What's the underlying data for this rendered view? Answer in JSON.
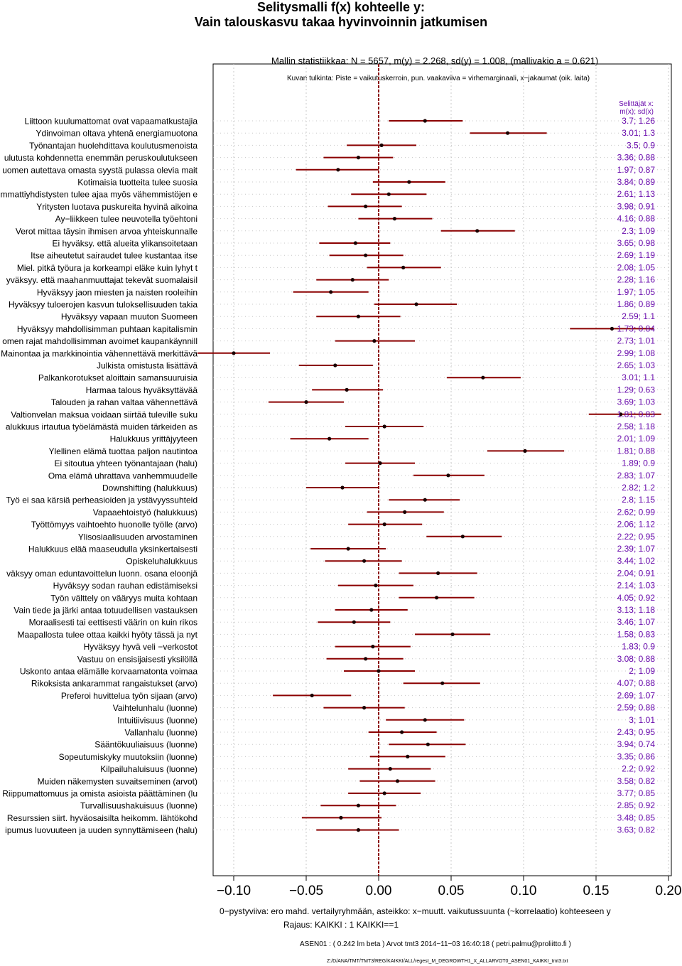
{
  "title": {
    "line1": "Selitysmalli f(x) kohteelle y:",
    "line2": "Vain talouskasvu takaa hyvinvoinnin jatkumisen"
  },
  "stats_line": "Mallin statistiikkaa: N = 5657, m(y) = 2.268, sd(y) = 1.008, (mallivakio a = 0.621)",
  "interpretation_line": "Kuvan tulkinta: Piste = vaikutuskerroin, pun. vaakaviiva = virhemarginaali, x−jakaumat (oik. laita)",
  "right_header": {
    "line1": "Selittäjät x:",
    "line2": "m(x); sd(x)"
  },
  "x_caption": "0−pystyviiva: ero mahd. vertailyryhmään, asteikko: x−muutt. vaikutussuunta (~korrelaatio) kohteeseen y",
  "rajaus": "Rajaus: KAIKKI : 1  KAIKKI==1",
  "asen_line": "ASEN01 : ( 0.242 lm beta )    Arvot tmt3 2014−11−03 16:40:18 ( petri.palmu@proliitto.fi )",
  "file_path": "Z:/D/ANA/TMT/TMT3/REG/KAIKKI/ALL/regest_M_DEGROWTH1_X_ALLARVOT0_ASEN01_KAIKKI_tmt3.txt",
  "colors": {
    "point": "#1a0000",
    "interval": "#8b0000",
    "zero_line": "#8b0000",
    "right_text": "#6a0dad",
    "grid": "#c8c8c8"
  },
  "chart_data": {
    "type": "forest",
    "xlim": [
      -0.11,
      0.2
    ],
    "x_ticks": [
      "−0.10",
      "−0.05",
      "0.00",
      "0.05",
      "0.10",
      "0.15",
      "0.20"
    ],
    "x_tick_values": [
      -0.1,
      -0.05,
      0.0,
      0.05,
      0.1,
      0.15,
      0.2
    ],
    "grid": true,
    "zero_line": 0,
    "rows": [
      {
        "label": "Liittoon kuulumattomat ovat vapaamatkustajia",
        "coef": 0.032,
        "lo": 0.007,
        "hi": 0.058,
        "mx_sd": "3.7; 1.26"
      },
      {
        "label": "Ydinvoiman oltava yhtenä energiamuotona",
        "coef": 0.089,
        "lo": 0.063,
        "hi": 0.116,
        "mx_sd": "3.01; 1.3"
      },
      {
        "label": "Työnantajan huolehdittava koulutusmenoista",
        "coef": 0.002,
        "lo": -0.022,
        "hi": 0.026,
        "mx_sd": "3.5; 0.9"
      },
      {
        "label": "ulutusta kohdennetta enemmän peruskoulutukseen",
        "coef": -0.014,
        "lo": -0.038,
        "hi": 0.01,
        "mx_sd": "3.36; 0.88"
      },
      {
        "label": "uomen autettava omasta syystä pulassa olevia mait",
        "coef": -0.028,
        "lo": -0.057,
        "hi": 0.0,
        "mx_sd": "1.97; 0.87"
      },
      {
        "label": "Kotimaisia tuotteita tulee suosia",
        "coef": 0.021,
        "lo": -0.004,
        "hi": 0.046,
        "mx_sd": "3.84; 0.89"
      },
      {
        "label": "mmattiyhdistysten tulee ajaa myös vähemmistöjen e",
        "coef": 0.007,
        "lo": -0.019,
        "hi": 0.033,
        "mx_sd": "2.61; 1.13"
      },
      {
        "label": "Yritysten luotava puskureita hyvinä aikoina",
        "coef": -0.009,
        "lo": -0.035,
        "hi": 0.016,
        "mx_sd": "3.98; 0.91"
      },
      {
        "label": "Ay−liikkeen tulee neuvotella työehtoni",
        "coef": 0.011,
        "lo": -0.014,
        "hi": 0.037,
        "mx_sd": "4.16; 0.88"
      },
      {
        "label": "Verot mittaa täysin ihmisen arvoa yhteiskunnalle",
        "coef": 0.068,
        "lo": 0.043,
        "hi": 0.094,
        "mx_sd": "2.3; 1.09"
      },
      {
        "label": "Ei hyväksy. että alueita ylikansoitetaan",
        "coef": -0.016,
        "lo": -0.041,
        "hi": 0.008,
        "mx_sd": "3.65; 0.98"
      },
      {
        "label": "Itse aiheutetut sairaudet tulee kustantaa itse",
        "coef": -0.009,
        "lo": -0.034,
        "hi": 0.017,
        "mx_sd": "2.69; 1.19"
      },
      {
        "label": "Miel. pitkä työura ja korkeampi eläke kuin lyhyt t",
        "coef": 0.017,
        "lo": -0.008,
        "hi": 0.043,
        "mx_sd": "2.08; 1.05"
      },
      {
        "label": "yväksyy. että maahanmuuttajat tekevät suomalaisil",
        "coef": -0.018,
        "lo": -0.043,
        "hi": 0.007,
        "mx_sd": "2.28; 1.16"
      },
      {
        "label": "Hyväksyy jaon miesten ja naisten rooleihin",
        "coef": -0.033,
        "lo": -0.059,
        "hi": -0.007,
        "mx_sd": "1.97; 1.05"
      },
      {
        "label": "Hyväksyy tuloerojen kasvun tuloksellisuuden takia",
        "coef": 0.026,
        "lo": -0.003,
        "hi": 0.054,
        "mx_sd": "1.86; 0.89"
      },
      {
        "label": "Hyväksyy vapaan muuton Suomeen",
        "coef": -0.014,
        "lo": -0.043,
        "hi": 0.015,
        "mx_sd": "2.59; 1.1"
      },
      {
        "label": "Hyväksyy mahdollisimman puhtaan kapitalismin",
        "coef": 0.161,
        "lo": 0.132,
        "hi": 0.19,
        "mx_sd": "1.73; 0.84"
      },
      {
        "label": "omen rajat mahdollisimman avoimet kaupankäynnill",
        "coef": -0.003,
        "lo": -0.03,
        "hi": 0.025,
        "mx_sd": "2.73; 1.01"
      },
      {
        "label": "Mainontaa ja markkinointia vähennettävä merkittävä",
        "coef": -0.1,
        "lo": -0.125,
        "hi": -0.075,
        "mx_sd": "2.99; 1.08"
      },
      {
        "label": "Julkista omistusta lisättävä",
        "coef": -0.03,
        "lo": -0.055,
        "hi": -0.004,
        "mx_sd": "2.65; 1.03"
      },
      {
        "label": "Palkankorotukset aloittain samansuuruisia",
        "coef": 0.072,
        "lo": 0.047,
        "hi": 0.098,
        "mx_sd": "3.01; 1.1"
      },
      {
        "label": "Harmaa talous hyväksyttävää",
        "coef": -0.022,
        "lo": -0.046,
        "hi": 0.003,
        "mx_sd": "1.29; 0.63"
      },
      {
        "label": "Talouden ja rahan valtaa vähennettävä",
        "coef": -0.05,
        "lo": -0.076,
        "hi": -0.024,
        "mx_sd": "3.69; 1.03"
      },
      {
        "label": "Valtionvelan maksua voidaan siirtää tuleville suku",
        "coef": 0.167,
        "lo": 0.145,
        "hi": 0.195,
        "mx_sd": "1.81; 0.83"
      },
      {
        "label": "alukkuus irtautua työelämästä muiden tärkeiden as",
        "coef": 0.004,
        "lo": -0.023,
        "hi": 0.031,
        "mx_sd": "2.58; 1.18"
      },
      {
        "label": "Halukkuus yrittäjyyteen",
        "coef": -0.034,
        "lo": -0.061,
        "hi": -0.007,
        "mx_sd": "2.01; 1.09"
      },
      {
        "label": "Ylellinen elämä tuottaa paljon nautintoa",
        "coef": 0.101,
        "lo": 0.075,
        "hi": 0.128,
        "mx_sd": "1.81; 0.88"
      },
      {
        "label": "Ei sitoutua yhteen työnantajaan (halu)",
        "coef": 0.001,
        "lo": -0.023,
        "hi": 0.025,
        "mx_sd": "1.89; 0.9"
      },
      {
        "label": "Oma elämä uhrattava vanhemmuudelle",
        "coef": 0.048,
        "lo": 0.024,
        "hi": 0.073,
        "mx_sd": "2.83; 1.07"
      },
      {
        "label": "Downshifting (halukkuus)",
        "coef": -0.025,
        "lo": -0.05,
        "hi": 0.0,
        "mx_sd": "2.82; 1.2"
      },
      {
        "label": "Työ ei saa kärsiä perheasioiden ja ystävyyssuhteid",
        "coef": 0.032,
        "lo": 0.007,
        "hi": 0.056,
        "mx_sd": "2.8; 1.15"
      },
      {
        "label": "Vapaaehtoistyö (halukkuus)",
        "coef": 0.018,
        "lo": -0.008,
        "hi": 0.045,
        "mx_sd": "2.62; 0.99"
      },
      {
        "label": "Työttömyys vaihtoehto huonolle työlle (arvo)",
        "coef": 0.004,
        "lo": -0.021,
        "hi": 0.03,
        "mx_sd": "2.06; 1.12"
      },
      {
        "label": "Ylisosiaalisuuden arvostaminen",
        "coef": 0.058,
        "lo": 0.033,
        "hi": 0.085,
        "mx_sd": "2.22; 0.95"
      },
      {
        "label": "Halukkuus elää maaseudulla yksinkertaisesti",
        "coef": -0.021,
        "lo": -0.047,
        "hi": 0.005,
        "mx_sd": "2.39; 1.07"
      },
      {
        "label": "Opiskeluhalukkuus",
        "coef": -0.01,
        "lo": -0.037,
        "hi": 0.016,
        "mx_sd": "3.44; 1.02"
      },
      {
        "label": "väksyy oman eduntavoittelun luonn. osana eloonjä",
        "coef": 0.041,
        "lo": 0.014,
        "hi": 0.068,
        "mx_sd": "2.04; 0.91"
      },
      {
        "label": "Hyväksyy sodan rauhan edistämiseksi",
        "coef": -0.002,
        "lo": -0.028,
        "hi": 0.024,
        "mx_sd": "2.14; 1.03"
      },
      {
        "label": "Työn välttely on vääryys muita kohtaan",
        "coef": 0.04,
        "lo": 0.014,
        "hi": 0.066,
        "mx_sd": "4.05; 0.92"
      },
      {
        "label": "Vain tiede ja järki antaa totuudellisen vastauksen",
        "coef": -0.005,
        "lo": -0.03,
        "hi": 0.02,
        "mx_sd": "3.13; 1.18"
      },
      {
        "label": "Moraalisesti tai eettisesti väärin on kuin rikos",
        "coef": -0.017,
        "lo": -0.042,
        "hi": 0.008,
        "mx_sd": "3.46; 1.07"
      },
      {
        "label": "Maapallosta tulee ottaa kaikki hyöty tässä ja nyt",
        "coef": 0.051,
        "lo": 0.025,
        "hi": 0.077,
        "mx_sd": "1.58; 0.83"
      },
      {
        "label": "Hyväksyy hyvä veli −verkostot",
        "coef": -0.004,
        "lo": -0.03,
        "hi": 0.022,
        "mx_sd": "1.83; 0.9"
      },
      {
        "label": "Vastuu on ensisijaisesti yksilöllä",
        "coef": -0.009,
        "lo": -0.036,
        "hi": 0.017,
        "mx_sd": "3.08; 0.88"
      },
      {
        "label": "Uskonto antaa elämälle korvaamatonta voimaa",
        "coef": 0.0,
        "lo": -0.024,
        "hi": 0.025,
        "mx_sd": "2; 1.09"
      },
      {
        "label": "Rikoksista ankarammat rangaistukset (arvo)",
        "coef": 0.044,
        "lo": 0.017,
        "hi": 0.07,
        "mx_sd": "4.07; 0.88"
      },
      {
        "label": "Preferoi huvittelua työn sijaan (arvo)",
        "coef": -0.046,
        "lo": -0.073,
        "hi": -0.019,
        "mx_sd": "2.69; 1.07"
      },
      {
        "label": "Vaihtelunhalu (luonne)",
        "coef": -0.01,
        "lo": -0.038,
        "hi": 0.018,
        "mx_sd": "2.59; 0.88"
      },
      {
        "label": "Intuitiivisuus (luonne)",
        "coef": 0.032,
        "lo": 0.005,
        "hi": 0.059,
        "mx_sd": "3; 1.01"
      },
      {
        "label": "Vallanhalu (luonne)",
        "coef": 0.016,
        "lo": -0.007,
        "hi": 0.04,
        "mx_sd": "2.43; 0.95"
      },
      {
        "label": "Sääntökuuliaisuus (luonne)",
        "coef": 0.034,
        "lo": 0.007,
        "hi": 0.06,
        "mx_sd": "3.94; 0.74"
      },
      {
        "label": "Sopeutumiskyky muutoksiin (luonne)",
        "coef": 0.02,
        "lo": -0.006,
        "hi": 0.046,
        "mx_sd": "3.35; 0.86"
      },
      {
        "label": "Kilpailuhaluisuus (luonne)",
        "coef": 0.008,
        "lo": -0.021,
        "hi": 0.036,
        "mx_sd": "2.2; 0.92"
      },
      {
        "label": "Muiden näkemysten suvaitseminen (arvot)",
        "coef": 0.013,
        "lo": -0.013,
        "hi": 0.039,
        "mx_sd": "3.58; 0.82"
      },
      {
        "label": "Riippumattomuus ja omista asioista päättäminen (lu",
        "coef": 0.004,
        "lo": -0.021,
        "hi": 0.029,
        "mx_sd": "3.77; 0.85"
      },
      {
        "label": "Turvallisuushakuisuus (luonne)",
        "coef": -0.014,
        "lo": -0.04,
        "hi": 0.012,
        "mx_sd": "2.85; 0.92"
      },
      {
        "label": "Resurssien siirt. hyväosaisilta heikomm. lähtökohd",
        "coef": -0.026,
        "lo": -0.053,
        "hi": 0.002,
        "mx_sd": "3.48; 0.85"
      },
      {
        "label": "ipumus luovuuteen ja uuden synnyttämiseen (halu)",
        "coef": -0.014,
        "lo": -0.043,
        "hi": 0.014,
        "mx_sd": "3.63; 0.82"
      }
    ]
  }
}
